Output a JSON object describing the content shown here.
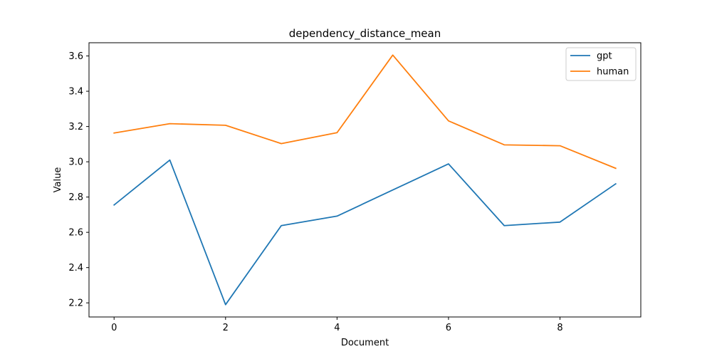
{
  "chart_data": {
    "type": "line",
    "title": "dependency_distance_mean",
    "xlabel": "Document",
    "ylabel": "Value",
    "x": [
      0,
      1,
      2,
      3,
      4,
      5,
      6,
      7,
      8,
      9
    ],
    "xlim": [
      -0.45,
      9.45
    ],
    "ylim": [
      2.12,
      3.675
    ],
    "xticks": [
      0,
      2,
      4,
      6,
      8
    ],
    "yticks": [
      2.2,
      2.4,
      2.6,
      2.8,
      3.0,
      3.2,
      3.4,
      3.6
    ],
    "ytick_labels": [
      "2.2",
      "2.4",
      "2.6",
      "2.8",
      "3.0",
      "3.2",
      "3.4",
      "3.6"
    ],
    "grid": false,
    "legend_position": "top-right",
    "series": [
      {
        "name": "gpt",
        "color": "#1f77b4",
        "values": [
          2.755,
          3.01,
          2.19,
          2.638,
          2.692,
          2.84,
          2.988,
          2.638,
          2.658,
          2.875
        ]
      },
      {
        "name": "human",
        "color": "#ff7f0e",
        "values": [
          3.163,
          3.216,
          3.207,
          3.103,
          3.165,
          3.605,
          3.232,
          3.096,
          3.091,
          2.963
        ]
      }
    ]
  }
}
